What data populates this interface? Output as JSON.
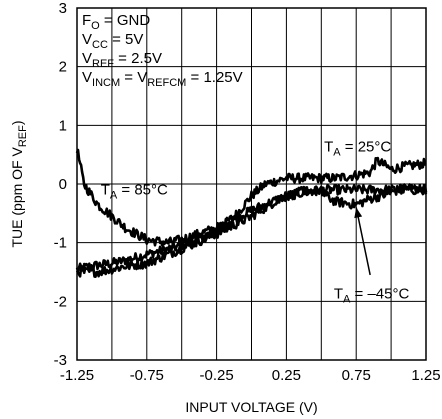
{
  "chart_data": {
    "type": "line",
    "xlabel": "INPUT VOLTAGE (V)",
    "ylabel": {
      "pre": "TUE (ppm OF V",
      "sub": "REF",
      "post": ")"
    },
    "xlim": [
      -1.25,
      1.25
    ],
    "ylim": [
      -3,
      3
    ],
    "x_ticks": [
      "-1.25",
      "-0.75",
      "-0.25",
      "0.25",
      "0.75",
      "1.25"
    ],
    "x_tick_values": [
      -1.25,
      -0.75,
      -0.25,
      0.25,
      0.75,
      1.25
    ],
    "y_ticks": [
      "3",
      "2",
      "1",
      "0",
      "-1",
      "-2",
      "-3"
    ],
    "y_tick_values": [
      3,
      2,
      1,
      0,
      -1,
      -2,
      -3
    ],
    "grid": true,
    "conditions": [
      {
        "pre": "F",
        "sub": "O",
        "post": " = GND"
      },
      {
        "pre": "V",
        "sub": "CC",
        "post": " = 5V"
      },
      {
        "pre": "V",
        "sub": "REF",
        "post": " = 2.5V"
      },
      {
        "pre": "V",
        "sub": "INCM",
        "post": " = V",
        "sub2": "REFCM",
        "post2": " = 1.25V"
      }
    ],
    "series": [
      {
        "name": {
          "pre": "T",
          "sub": "A",
          "post": " = 25°C"
        },
        "x": [
          -1.25,
          -1.15,
          -1.0,
          -0.9,
          -0.75,
          -0.5,
          -0.25,
          -0.1,
          0.0,
          0.1,
          0.25,
          0.4,
          0.5,
          0.6,
          0.75,
          0.85,
          0.9,
          1.0,
          1.1,
          1.25
        ],
        "y": [
          -1.45,
          -1.4,
          -1.35,
          -1.3,
          -1.2,
          -1.05,
          -0.8,
          -0.5,
          -0.2,
          0.0,
          0.1,
          0.1,
          0.1,
          0.1,
          0.15,
          0.2,
          0.4,
          0.25,
          0.3,
          0.35
        ]
      },
      {
        "name": {
          "pre": "T",
          "sub": "A",
          "post": " = 85°C"
        },
        "x": [
          -1.25,
          -1.2,
          -1.1,
          -1.0,
          -0.9,
          -0.75,
          -0.6,
          -0.5,
          -0.25,
          0.0,
          0.25,
          0.5,
          0.75,
          1.0,
          1.25
        ],
        "y": [
          0.6,
          0.0,
          -0.35,
          -0.55,
          -0.75,
          -0.95,
          -1.0,
          -0.95,
          -0.75,
          -0.45,
          -0.2,
          -0.1,
          -0.1,
          -0.1,
          -0.1
        ]
      },
      {
        "name": {
          "pre": "T",
          "sub": "A",
          "post": " = –45°C"
        },
        "x": [
          -1.25,
          -1.1,
          -1.0,
          -0.9,
          -0.75,
          -0.5,
          -0.25,
          0.0,
          0.2,
          0.4,
          0.5,
          0.6,
          0.75,
          0.85,
          1.0,
          1.1,
          1.25
        ],
        "y": [
          -1.5,
          -1.5,
          -1.45,
          -1.4,
          -1.35,
          -1.1,
          -0.85,
          -0.55,
          -0.25,
          -0.1,
          -0.15,
          -0.3,
          -0.35,
          -0.25,
          -0.15,
          -0.05,
          -0.1
        ]
      }
    ],
    "annotations": [
      {
        "series": 0,
        "x": 0.52,
        "y": 0.55
      },
      {
        "series": 1,
        "x": -1.08,
        "y": -0.18
      },
      {
        "series": 2,
        "x": 0.59,
        "y": -1.95
      }
    ],
    "pointer": {
      "from": [
        0.85,
        -1.55
      ],
      "to": [
        0.75,
        -0.4
      ]
    }
  }
}
